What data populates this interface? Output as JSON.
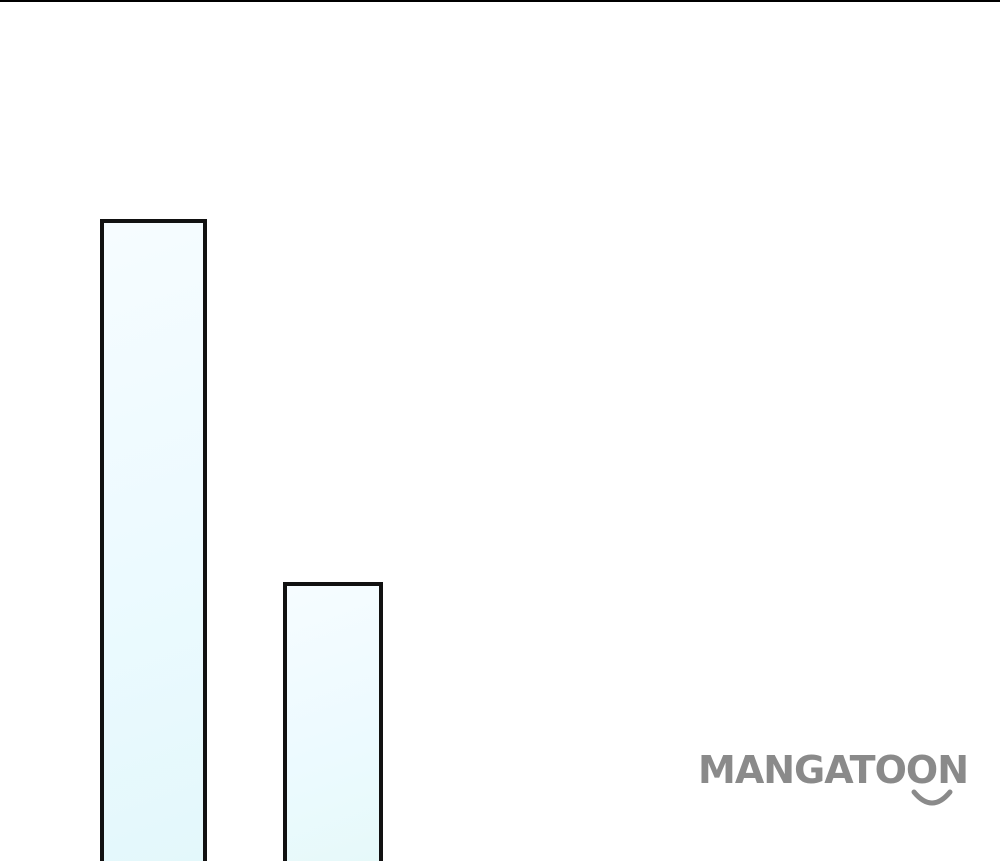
{
  "watermark": {
    "text": "MANGATOON",
    "color": "#8a8a8a",
    "icon": "smile-icon"
  },
  "colors": {
    "panel_border": "#111111",
    "panel_fill": "#ecfaff",
    "background": "#ffffff"
  }
}
